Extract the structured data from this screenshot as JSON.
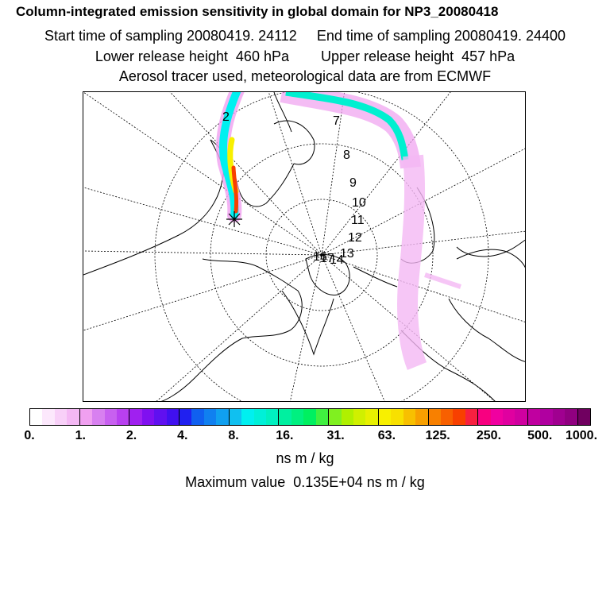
{
  "header": {
    "title": "Column-integrated emission sensitivity in global domain for NP3_20080418",
    "start_time": "Start time of sampling 20080419. 24112",
    "end_time": "End time of sampling 20080419. 24400",
    "lower_height": "Lower release height  460 hPa",
    "upper_height": "Upper release height  457 hPa",
    "tracer_note": "Aerosol tracer used, meteorological data are from ECMWF"
  },
  "map": {
    "day_labels": [
      "2",
      "7",
      "8",
      "9",
      "10",
      "11",
      "12",
      "13",
      "14",
      "16",
      "17"
    ],
    "release_marker": "release-point-cross-icon"
  },
  "colorbar": {
    "colors": [
      "#ffffff",
      "#fce8fc",
      "#f8d0f8",
      "#f4b8f4",
      "#f0a0f0",
      "#d880f0",
      "#c860f0",
      "#b840f0",
      "#a020f0",
      "#8010f0",
      "#6010f0",
      "#4010f0",
      "#2020f0",
      "#1060f0",
      "#1080f0",
      "#10a0f0",
      "#10c0f0",
      "#00f0f0",
      "#00f0d8",
      "#00f0c0",
      "#00f0a0",
      "#00f080",
      "#00f060",
      "#40f040",
      "#80f020",
      "#b0f000",
      "#d0f000",
      "#e8f000",
      "#f8f000",
      "#f8e000",
      "#f8c000",
      "#f8a000",
      "#f88000",
      "#f86000",
      "#f84000",
      "#f82040",
      "#f80080",
      "#f000a0",
      "#e000a0",
      "#d000a0",
      "#c000a0",
      "#b000a0",
      "#a00090",
      "#900080",
      "#700060"
    ],
    "tick_labels": [
      "0.",
      "1.",
      "2.",
      "4.",
      "8.",
      "16.",
      "31.",
      "63.",
      "125.",
      "250.",
      "500.",
      "1000."
    ],
    "units": "ns m / kg"
  },
  "footer": {
    "max_value": "Maximum value  0.135E+04 ns m / kg"
  }
}
